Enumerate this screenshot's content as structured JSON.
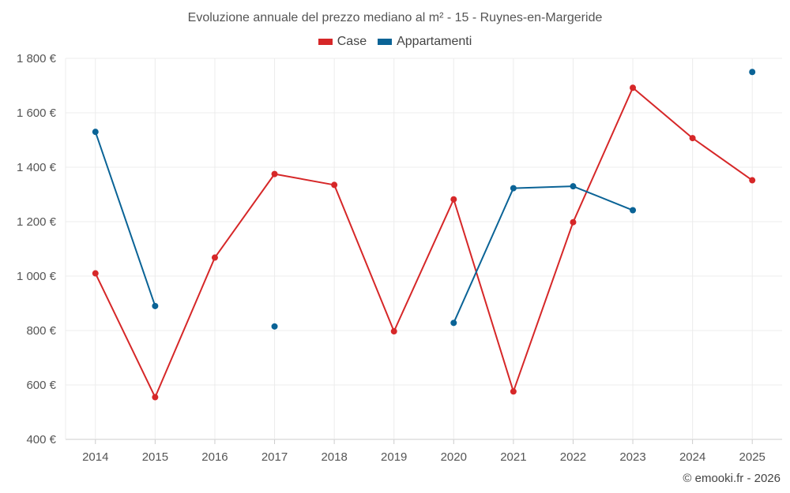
{
  "chart_data": {
    "type": "line",
    "title": "Evoluzione annuale del prezzo mediano al m² - 15 - Ruynes-en-Margeride",
    "xlabel": "",
    "ylabel": "",
    "categories": [
      "2014",
      "2015",
      "2016",
      "2017",
      "2018",
      "2019",
      "2020",
      "2021",
      "2022",
      "2023",
      "2024",
      "2025"
    ],
    "ylim": [
      400,
      1800
    ],
    "yticks": [
      400,
      600,
      800,
      1000,
      1200,
      1400,
      1600,
      1800
    ],
    "ytick_labels": [
      "400 €",
      "600 €",
      "800 €",
      "1 000 €",
      "1 200 €",
      "1 400 €",
      "1 600 €",
      "1 800 €"
    ],
    "grid": true,
    "legend_position": "top-center",
    "series": [
      {
        "name": "Case",
        "color": "#d62728",
        "values": [
          1010,
          555,
          1068,
          1375,
          1335,
          797,
          1282,
          576,
          1198,
          1692,
          1507,
          1352
        ]
      },
      {
        "name": "Appartamenti",
        "color": "#0a6396",
        "values": [
          1530,
          890,
          null,
          815,
          null,
          null,
          828,
          1323,
          1330,
          1242,
          null,
          1750
        ]
      }
    ]
  },
  "credit": "© emooki.fr - 2026"
}
